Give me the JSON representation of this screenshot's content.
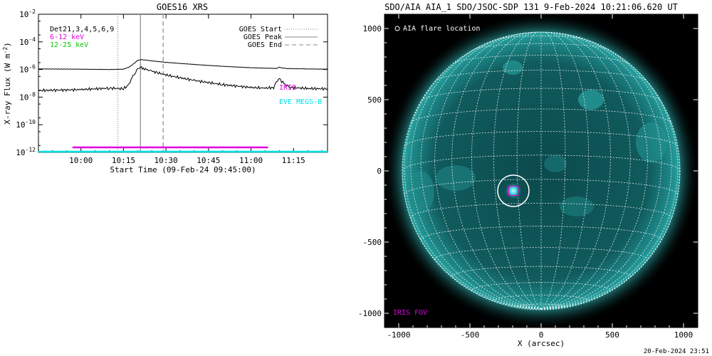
{
  "goes_panel": {
    "title": "GOES16 XRS",
    "ylabel": "X-ray Flux (W m",
    "ylabel_sup": "-2",
    "ylabel_close": ")",
    "xlabel": "Start Time (09-Feb-24 09:45:00)",
    "det_label": "Det21,3,4,5,6,9",
    "band1_label": "6-12 keV",
    "band2_label": "12-25 keV",
    "band1_color": "#e000e0",
    "band2_color": "#00cc00",
    "iris_label": "IRIS",
    "eve_label": "EVE MEGS-B",
    "iris_color": "#e000e0",
    "eve_color": "#00e0e0",
    "legend": [
      {
        "label": "GOES Start",
        "style": "dotted"
      },
      {
        "label": "GOES Peak",
        "style": "solid"
      },
      {
        "label": "GOES End",
        "style": "dashed"
      }
    ]
  },
  "aia_panel": {
    "title": "SDO/AIA AIA_1 SDO/JSOC-SDP 131  9-Feb-2024 10:21:06.620 UT",
    "legend_label": "AIA flare location",
    "iris_fov_label": "IRIS FOV",
    "xlabel": "X (arcsec)",
    "x_ticks": [
      "-1000",
      "-500",
      "0",
      "500",
      "1000"
    ],
    "y_ticks": [
      "1000",
      "500",
      "0",
      "-500",
      "-1000"
    ],
    "disk_color": "#0f6e6e",
    "footer": "20-Feb-2024 23:51"
  },
  "chart_data": [
    {
      "type": "line",
      "title": "GOES16 XRS",
      "ylabel": "X-ray Flux (W m^-2)",
      "xlabel": "Start Time (09-Feb-24 09:45:00)",
      "y_scale": "log",
      "ylim": [
        1e-12,
        0.01
      ],
      "xlim_minutes_after_start": [
        0,
        102
      ],
      "x_tick_labels": [
        "10:00",
        "10:15",
        "10:30",
        "10:45",
        "11:00",
        "11:15"
      ],
      "y_tick_labels": [
        "10^-12",
        "10^-10",
        "10^-8",
        "10^-6",
        "10^-4",
        "10^-2"
      ],
      "series": [
        {
          "name": "",
          "x": [
            "09:45",
            "10:00",
            "10:10",
            "10:15",
            "10:17",
            "10:19",
            "10:20",
            "10:21",
            "10:23",
            "10:25",
            "10:30",
            "10:40",
            "10:50",
            "11:00",
            "11:05",
            "11:09",
            "11:10",
            "11:11",
            "11:12",
            "11:14",
            "11:20",
            "11:27"
          ],
          "y": [
            1.1e-06,
            1.05e-06,
            1e-06,
            1.05e-06,
            1.5e-06,
            3e-06,
            4.5e-06,
            5.2e-06,
            4.8e-06,
            4.2e-06,
            3.3e-06,
            2.3e-06,
            1.7e-06,
            1.35e-06,
            1.25e-06,
            1.2e-06,
            1.45e-06,
            1.3e-06,
            1.2e-06,
            1.15e-06,
            1.1e-06,
            1.05e-06
          ]
        },
        {
          "name": "",
          "x": [
            "09:45",
            "10:00",
            "10:10",
            "10:15",
            "10:17",
            "10:18",
            "10:19",
            "10:20",
            "10:21",
            "10:22",
            "10:25",
            "10:30",
            "10:40",
            "10:50",
            "11:00",
            "11:05",
            "11:08",
            "11:09",
            "11:10",
            "11:12",
            "11:14",
            "11:20",
            "11:27"
          ],
          "y": [
            3e-08,
            3.5e-08,
            4.5e-08,
            4e-08,
            8e-08,
            3e-07,
            5e-07,
            1e-06,
            1.5e-06,
            1.2e-06,
            7.5e-07,
            4e-07,
            1.6e-07,
            8e-08,
            5e-08,
            4.5e-08,
            5e-08,
            1.2e-07,
            2.1e-07,
            8e-08,
            5e-08,
            4.2e-08,
            4e-08
          ]
        }
      ],
      "markers": [
        {
          "name": "GOES Start",
          "time": "10:13",
          "style": "dotted"
        },
        {
          "name": "GOES Peak",
          "time": "10:21",
          "style": "solid"
        },
        {
          "name": "GOES End",
          "time": "10:29",
          "style": "dashed"
        }
      ],
      "coverage_bars": [
        {
          "name": "IRIS",
          "start": "09:57",
          "end": "11:06",
          "color": "#e000e0"
        },
        {
          "name": "EVE MEGS-B",
          "start": "09:45",
          "end": "11:27",
          "color": "#00e0e0"
        }
      ]
    },
    {
      "type": "scatter",
      "title": "SDO/AIA AIA_1 SDO/JSOC-SDP 131  9-Feb-2024 10:21:06.620 UT",
      "xlabel": "X (arcsec)",
      "ylabel": "",
      "xlim": [
        -1100,
        1100
      ],
      "ylim": [
        -1100,
        1100
      ],
      "grid": true,
      "solar_radius_arcsec": 975,
      "points": [
        {
          "name": "AIA flare location",
          "x": -195,
          "y": -140
        },
        {
          "name": "IRIS FOV",
          "x": -195,
          "y": -140
        }
      ]
    }
  ]
}
